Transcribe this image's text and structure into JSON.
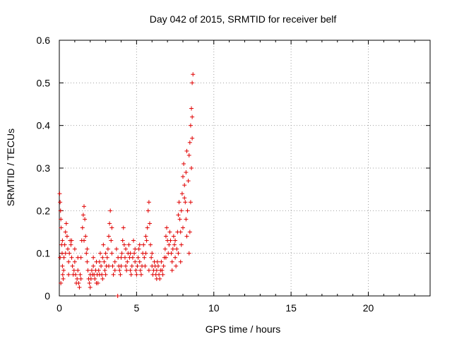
{
  "chart_data": {
    "type": "scatter",
    "title": "Day 042 of 2015, SRMTID for receiver belf",
    "xlabel": "GPS time / hours",
    "ylabel": "SRMTID / TECUs",
    "xlim": [
      0,
      24
    ],
    "ylim": [
      0,
      0.6
    ],
    "xticks": [
      0,
      5,
      10,
      15,
      20
    ],
    "yticks": [
      0,
      0.1,
      0.2,
      0.3,
      0.4,
      0.5,
      0.6
    ],
    "xtick_labels": [
      "0",
      "5",
      "10",
      "15",
      "20"
    ],
    "ytick_labels": [
      "0",
      "0.1",
      "0.2",
      "0.3",
      "0.4",
      "0.5",
      "0.6"
    ],
    "grid": true,
    "marker": "+",
    "color": "#e00000",
    "series": [
      {
        "name": "SRMTID",
        "points": [
          [
            0.02,
            0.24
          ],
          [
            0.05,
            0.22
          ],
          [
            0.08,
            0.2
          ],
          [
            0.1,
            0.18
          ],
          [
            0.12,
            0.16
          ],
          [
            0.15,
            0.12
          ],
          [
            0.18,
            0.1
          ],
          [
            0.2,
            0.07
          ],
          [
            0.22,
            0.05
          ],
          [
            0.25,
            0.04
          ],
          [
            0.28,
            0.06
          ],
          [
            0.3,
            0.09
          ],
          [
            0.35,
            0.12
          ],
          [
            0.4,
            0.15
          ],
          [
            0.45,
            0.17
          ],
          [
            0.5,
            0.14
          ],
          [
            0.55,
            0.11
          ],
          [
            0.6,
            0.08
          ],
          [
            0.65,
            0.1
          ],
          [
            0.7,
            0.13
          ],
          [
            0.75,
            0.12
          ],
          [
            0.8,
            0.09
          ],
          [
            0.85,
            0.07
          ],
          [
            0.9,
            0.05
          ],
          [
            0.95,
            0.06
          ],
          [
            1.0,
            0.08
          ],
          [
            1.05,
            0.05
          ],
          [
            1.1,
            0.03
          ],
          [
            1.15,
            0.04
          ],
          [
            1.2,
            0.06
          ],
          [
            1.25,
            0.03
          ],
          [
            1.3,
            0.02
          ],
          [
            1.35,
            0.05
          ],
          [
            1.4,
            0.09
          ],
          [
            1.45,
            0.13
          ],
          [
            1.5,
            0.16
          ],
          [
            1.55,
            0.19
          ],
          [
            1.6,
            0.21
          ],
          [
            1.65,
            0.18
          ],
          [
            1.7,
            0.14
          ],
          [
            1.75,
            0.1
          ],
          [
            1.8,
            0.08
          ],
          [
            1.85,
            0.06
          ],
          [
            1.9,
            0.04
          ],
          [
            1.95,
            0.03
          ],
          [
            2.0,
            0.05
          ],
          [
            2.05,
            0.04
          ],
          [
            2.1,
            0.06
          ],
          [
            2.15,
            0.05
          ],
          [
            2.2,
            0.07
          ],
          [
            2.25,
            0.05
          ],
          [
            2.3,
            0.04
          ],
          [
            2.35,
            0.06
          ],
          [
            2.4,
            0.08
          ],
          [
            2.45,
            0.05
          ],
          [
            2.5,
            0.03
          ],
          [
            2.55,
            0.06
          ],
          [
            2.6,
            0.08
          ],
          [
            2.65,
            0.1
          ],
          [
            2.7,
            0.07
          ],
          [
            2.75,
            0.05
          ],
          [
            2.8,
            0.09
          ],
          [
            2.85,
            0.12
          ],
          [
            2.9,
            0.08
          ],
          [
            2.95,
            0.06
          ],
          [
            3.0,
            0.05
          ],
          [
            3.05,
            0.07
          ],
          [
            3.1,
            0.09
          ],
          [
            3.15,
            0.11
          ],
          [
            3.2,
            0.14
          ],
          [
            3.25,
            0.17
          ],
          [
            3.3,
            0.2
          ],
          [
            3.35,
            0.13
          ],
          [
            3.4,
            0.1
          ],
          [
            3.45,
            0.07
          ],
          [
            3.5,
            0.05
          ],
          [
            3.6,
            0.08
          ],
          [
            3.7,
            0.11
          ],
          [
            3.78,
            0.0
          ],
          [
            3.8,
            0.09
          ],
          [
            3.85,
            0.07
          ],
          [
            3.9,
            0.06
          ],
          [
            3.95,
            0.05
          ],
          [
            4.0,
            0.07
          ],
          [
            4.05,
            0.1
          ],
          [
            4.1,
            0.13
          ],
          [
            4.15,
            0.16
          ],
          [
            4.2,
            0.12
          ],
          [
            4.25,
            0.09
          ],
          [
            4.3,
            0.07
          ],
          [
            4.35,
            0.06
          ],
          [
            4.4,
            0.08
          ],
          [
            4.45,
            0.1
          ],
          [
            4.5,
            0.12
          ],
          [
            4.55,
            0.09
          ],
          [
            4.6,
            0.06
          ],
          [
            4.65,
            0.05
          ],
          [
            4.7,
            0.07
          ],
          [
            4.75,
            0.09
          ],
          [
            4.8,
            0.13
          ],
          [
            4.85,
            0.1
          ],
          [
            4.9,
            0.08
          ],
          [
            4.95,
            0.06
          ],
          [
            5.0,
            0.05
          ],
          [
            5.05,
            0.07
          ],
          [
            5.1,
            0.09
          ],
          [
            5.15,
            0.11
          ],
          [
            5.2,
            0.08
          ],
          [
            5.25,
            0.06
          ],
          [
            5.3,
            0.05
          ],
          [
            5.35,
            0.07
          ],
          [
            5.4,
            0.1
          ],
          [
            5.45,
            0.12
          ],
          [
            5.5,
            0.09
          ],
          [
            5.55,
            0.07
          ],
          [
            5.6,
            0.1
          ],
          [
            5.65,
            0.13
          ],
          [
            5.7,
            0.16
          ],
          [
            5.75,
            0.2
          ],
          [
            5.8,
            0.22
          ],
          [
            5.85,
            0.17
          ],
          [
            5.9,
            0.12
          ],
          [
            5.95,
            0.09
          ],
          [
            6.0,
            0.07
          ],
          [
            6.05,
            0.05
          ],
          [
            6.1,
            0.06
          ],
          [
            6.15,
            0.08
          ],
          [
            6.2,
            0.07
          ],
          [
            6.25,
            0.05
          ],
          [
            6.3,
            0.06
          ],
          [
            6.35,
            0.08
          ],
          [
            6.4,
            0.07
          ],
          [
            6.45,
            0.05
          ],
          [
            6.5,
            0.04
          ],
          [
            6.55,
            0.06
          ],
          [
            6.6,
            0.08
          ],
          [
            6.65,
            0.06
          ],
          [
            6.7,
            0.05
          ],
          [
            6.75,
            0.07
          ],
          [
            6.8,
            0.09
          ],
          [
            6.85,
            0.11
          ],
          [
            6.9,
            0.14
          ],
          [
            6.95,
            0.16
          ],
          [
            7.0,
            0.13
          ],
          [
            7.05,
            0.1
          ],
          [
            7.1,
            0.12
          ],
          [
            7.15,
            0.15
          ],
          [
            7.2,
            0.13
          ],
          [
            7.25,
            0.1
          ],
          [
            7.3,
            0.08
          ],
          [
            7.35,
            0.11
          ],
          [
            7.4,
            0.14
          ],
          [
            7.45,
            0.12
          ],
          [
            7.5,
            0.09
          ],
          [
            7.55,
            0.07
          ],
          [
            7.6,
            0.11
          ],
          [
            7.65,
            0.15
          ],
          [
            7.7,
            0.19
          ],
          [
            7.75,
            0.22
          ],
          [
            7.8,
            0.18
          ],
          [
            7.85,
            0.15
          ],
          [
            7.9,
            0.2
          ],
          [
            7.95,
            0.24
          ],
          [
            8.0,
            0.28
          ],
          [
            8.05,
            0.31
          ],
          [
            8.1,
            0.26
          ],
          [
            8.15,
            0.22
          ],
          [
            8.2,
            0.18
          ],
          [
            8.25,
            0.14
          ],
          [
            8.3,
            0.2
          ],
          [
            8.35,
            0.27
          ],
          [
            8.4,
            0.33
          ],
          [
            8.45,
            0.36
          ],
          [
            8.5,
            0.4
          ],
          [
            8.55,
            0.44
          ],
          [
            8.6,
            0.5
          ],
          [
            8.65,
            0.52
          ],
          [
            8.55,
            0.3
          ],
          [
            8.5,
            0.22
          ],
          [
            8.45,
            0.15
          ],
          [
            8.4,
            0.1
          ],
          [
            8.6,
            0.42
          ],
          [
            8.6,
            0.37
          ],
          [
            8.25,
            0.34
          ],
          [
            8.2,
            0.29
          ],
          [
            8.1,
            0.23
          ],
          [
            8.0,
            0.16
          ],
          [
            7.9,
            0.12
          ],
          [
            7.85,
            0.08
          ],
          [
            7.7,
            0.1
          ],
          [
            7.5,
            0.13
          ],
          [
            7.3,
            0.06
          ],
          [
            6.9,
            0.09
          ],
          [
            6.3,
            0.04
          ],
          [
            6.0,
            0.1
          ],
          [
            5.8,
            0.06
          ],
          [
            5.6,
            0.14
          ],
          [
            5.2,
            0.12
          ],
          [
            4.9,
            0.11
          ],
          [
            4.6,
            0.1
          ],
          [
            4.3,
            0.11
          ],
          [
            4.0,
            0.09
          ],
          [
            3.6,
            0.06
          ],
          [
            3.4,
            0.16
          ],
          [
            3.2,
            0.07
          ],
          [
            3.0,
            0.1
          ],
          [
            2.8,
            0.04
          ],
          [
            2.6,
            0.05
          ],
          [
            2.4,
            0.03
          ],
          [
            2.2,
            0.09
          ],
          [
            2.0,
            0.02
          ],
          [
            1.8,
            0.11
          ],
          [
            1.6,
            0.13
          ],
          [
            1.4,
            0.04
          ],
          [
            1.2,
            0.09
          ],
          [
            1.0,
            0.11
          ],
          [
            0.8,
            0.13
          ],
          [
            0.6,
            0.05
          ],
          [
            0.4,
            0.1
          ],
          [
            0.2,
            0.13
          ],
          [
            0.1,
            0.03
          ],
          [
            0.05,
            0.09
          ]
        ]
      }
    ]
  }
}
